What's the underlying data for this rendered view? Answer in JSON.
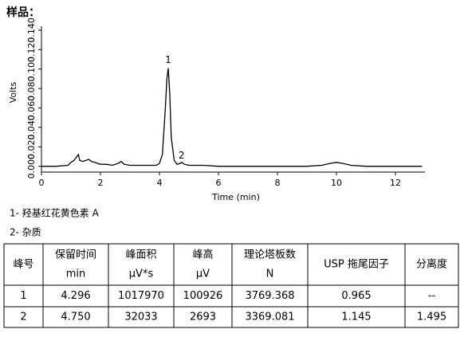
{
  "heading": "样品：",
  "chart_data": {
    "type": "line",
    "xlabel": "Time (min)",
    "ylabel": "Volts",
    "xlim": [
      0,
      13
    ],
    "ylim": [
      -0.006,
      0.144
    ],
    "xticks": [
      0,
      2,
      4,
      6,
      8,
      10,
      12
    ],
    "yticks": [
      {
        "value": 0,
        "label": "0.000"
      },
      {
        "value": 0.02,
        "label": "0.020"
      },
      {
        "value": 0.04,
        "label": "0.040"
      },
      {
        "value": 0.06,
        "label": "0.060"
      },
      {
        "value": 0.08,
        "label": "0.080"
      },
      {
        "value": 0.1,
        "label": "0.100"
      },
      {
        "value": 0.12,
        "label": "0.120"
      },
      {
        "value": 0.14,
        "label": "0.140"
      }
    ],
    "series": [
      {
        "color": "#000000",
        "x": [
          0,
          0.5,
          0.9,
          1.0,
          1.1,
          1.2,
          1.25,
          1.3,
          1.4,
          1.5,
          1.6,
          1.7,
          1.8,
          2.0,
          2.2,
          2.4,
          2.6,
          2.7,
          2.8,
          3.0,
          3.5,
          3.9,
          4.0,
          4.1,
          4.2,
          4.25,
          4.296,
          4.35,
          4.4,
          4.5,
          4.6,
          4.7,
          4.75,
          4.85,
          5.0,
          5.5,
          6.0,
          7.0,
          8.0,
          9.0,
          9.5,
          9.8,
          10.0,
          10.2,
          10.5,
          11,
          12,
          12.9
        ],
        "values": [
          0,
          0,
          0.001,
          0.004,
          0.006,
          0.01,
          0.012,
          0.006,
          0.005,
          0.006,
          0.007,
          0.005,
          0.004,
          0.002,
          0.002,
          0.001,
          0.003,
          0.005,
          0.002,
          0.001,
          0.001,
          0.001,
          0.003,
          0.012,
          0.06,
          0.09,
          0.101,
          0.075,
          0.03,
          0.006,
          0.002,
          0.003,
          0.004,
          0.002,
          0.001,
          0.001,
          0,
          0,
          0,
          0,
          0.001,
          0.003,
          0.004,
          0.003,
          0.001,
          0,
          0,
          0
        ]
      }
    ],
    "annotations": [
      {
        "text": "1",
        "x": 4.296,
        "y": 0.101
      },
      {
        "text": "2",
        "x": 4.75,
        "y": 0.0027
      }
    ]
  },
  "notes": [
    "1-  羟基红花黄色素 A",
    "2-  杂质"
  ],
  "table": {
    "header": [
      [
        "峰号"
      ],
      [
        "保留时间",
        "min"
      ],
      [
        "峰面积",
        "µV*s"
      ],
      [
        "峰高",
        "µV"
      ],
      [
        "理论塔板数",
        "N"
      ],
      [
        "USP 拖尾因子"
      ],
      [
        "分离度"
      ]
    ],
    "rows": [
      [
        "1",
        "4.296",
        "1017970",
        "100926",
        "3769.368",
        "0.965",
        "--"
      ],
      [
        "2",
        "4.750",
        "32033",
        "2693",
        "3369.081",
        "1.145",
        "1.495"
      ]
    ]
  }
}
